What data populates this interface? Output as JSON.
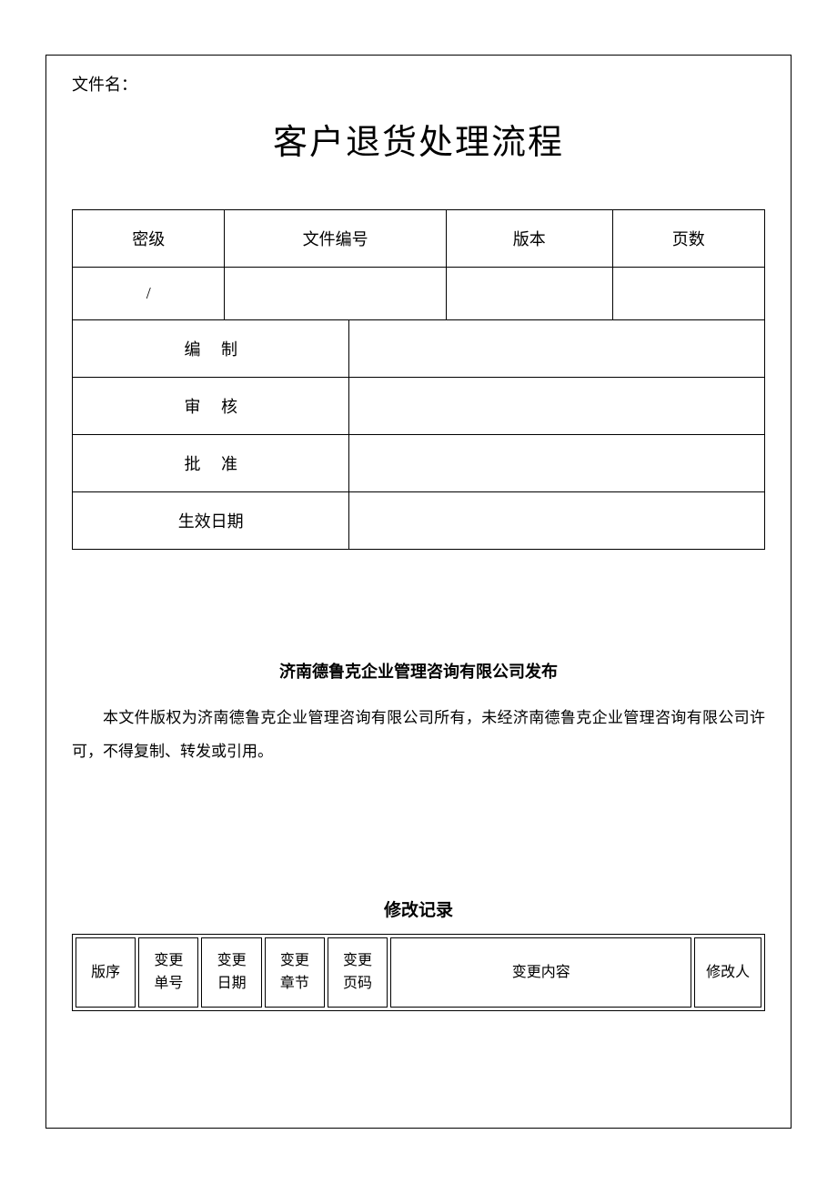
{
  "header": {
    "file_label": "文件名：",
    "title": "客户退货处理流程"
  },
  "info_table": {
    "row1": {
      "col1": "密级",
      "col2": "文件编号",
      "col3": "版本",
      "col4": "页数"
    },
    "row2": {
      "col1": "/",
      "col2": "",
      "col3": "",
      "col4": ""
    },
    "rows_kv": [
      {
        "label_a": "编",
        "label_b": "制",
        "value": ""
      },
      {
        "label_a": "审",
        "label_b": "核",
        "value": ""
      },
      {
        "label_a": "批",
        "label_b": "准",
        "value": ""
      },
      {
        "label_a": "生效日期",
        "label_b": "",
        "value": ""
      }
    ]
  },
  "publisher": "济南德鲁克企业管理咨询有限公司发布",
  "copyright": "本文件版权为济南德鲁克企业管理咨询有限公司所有，未经济南德鲁克企业管理咨询有限公司许可，不得复制、转发或引用。",
  "record": {
    "title": "修改记录",
    "columns": [
      "版序",
      "变更\n单号",
      "变更\n日期",
      "变更\n章节",
      "变更\n页码",
      "变更内容",
      "修改人"
    ],
    "col_widths": [
      "9%",
      "9%",
      "9%",
      "9%",
      "9%",
      "45%",
      "10%"
    ]
  },
  "colors": {
    "text": "#000000",
    "background": "#ffffff",
    "border": "#000000"
  }
}
